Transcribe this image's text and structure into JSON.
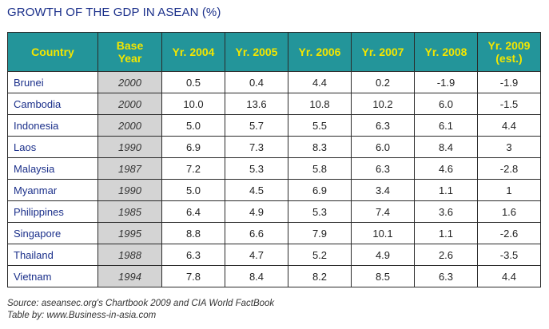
{
  "title": "GROWTH OF THE GDP IN ASEAN (%)",
  "table": {
    "headers": [
      [
        "Country"
      ],
      [
        "Base",
        "Year"
      ],
      [
        "Yr. 2004"
      ],
      [
        "Yr. 2005"
      ],
      [
        "Yr. 2006"
      ],
      [
        "Yr. 2007"
      ],
      [
        "Yr. 2008"
      ],
      [
        "Yr. 2009",
        "(est.)"
      ]
    ],
    "rows": [
      [
        "Brunei",
        "2000",
        "0.5",
        "0.4",
        "4.4",
        "0.2",
        "-1.9",
        "-1.9"
      ],
      [
        "Cambodia",
        "2000",
        "10.0",
        "13.6",
        "10.8",
        "10.2",
        "6.0",
        "-1.5"
      ],
      [
        "Indonesia",
        "2000",
        "5.0",
        "5.7",
        "5.5",
        "6.3",
        "6.1",
        "4.4"
      ],
      [
        "Laos",
        "1990",
        "6.9",
        "7.3",
        "8.3",
        "6.0",
        "8.4",
        "3"
      ],
      [
        "Malaysia",
        "1987",
        "7.2",
        "5.3",
        "5.8",
        "6.3",
        "4.6",
        "-2.8"
      ],
      [
        "Myanmar",
        "1990",
        "5.0",
        "4.5",
        "6.9",
        "3.4",
        "1.1",
        "1"
      ],
      [
        "Philippines",
        "1985",
        "6.4",
        "4.9",
        "5.3",
        "7.4",
        "3.6",
        "1.6"
      ],
      [
        "Singapore",
        "1995",
        "8.8",
        "6.6",
        "7.9",
        "10.1",
        "1.1",
        "-2.6"
      ],
      [
        "Thailand",
        "1988",
        "6.3",
        "4.7",
        "5.2",
        "4.9",
        "2.6",
        "-3.5"
      ],
      [
        "Vietnam",
        "1994",
        "7.8",
        "8.4",
        "8.2",
        "8.5",
        "6.3",
        "4.4"
      ]
    ]
  },
  "footer": {
    "source": "Source: aseansec.org's Chartbook 2009 and CIA World FactBook",
    "credit": "Table by: www.Business-in-asia.com"
  },
  "colors": {
    "header_bg": "#23959a",
    "header_text": "#f3e600",
    "title_text": "#1a2f8a",
    "base_year_bg": "#d4d4d4"
  }
}
